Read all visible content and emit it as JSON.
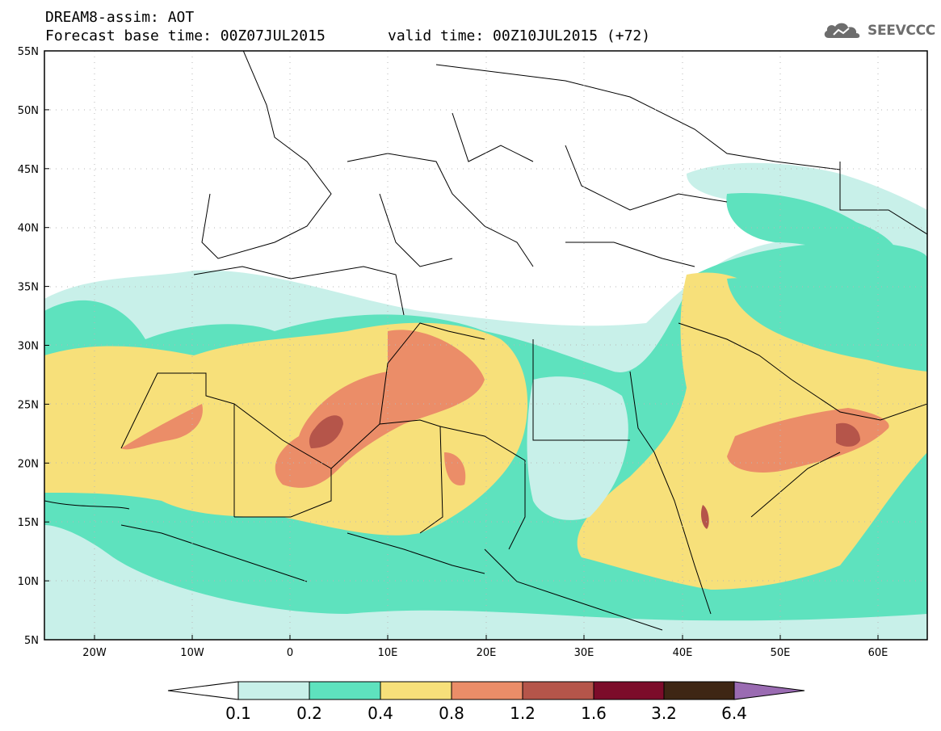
{
  "header": {
    "title": "DREAM8-assim: AOT",
    "base_time": "Forecast base time: 00Z07JUL2015",
    "valid_time": "valid time: 00Z10JUL2015 (+72)"
  },
  "logo": {
    "text": "SEEVCCC",
    "icon": "cloud-icon"
  },
  "map": {
    "lat_labels": [
      "55N",
      "50N",
      "45N",
      "40N",
      "35N",
      "30N",
      "25N",
      "20N",
      "15N",
      "10N",
      "5N"
    ],
    "lon_labels": [
      "20W",
      "10W",
      "0",
      "10E",
      "20E",
      "30E",
      "40E",
      "50E",
      "60E"
    ],
    "grid": true
  },
  "legend": {
    "labels": [
      "0.1",
      "0.2",
      "0.4",
      "0.8",
      "1.2",
      "1.6",
      "3.2",
      "6.4"
    ],
    "colors": [
      "#ffffff",
      "#c8f0e9",
      "#5ee2be",
      "#f7e07a",
      "#eb8d68",
      "#b5554a",
      "#7c0c2a",
      "#3e2614",
      "#9a6bb2"
    ]
  },
  "colors": {
    "low": "#c8f0e9",
    "mid": "#5ee2be",
    "high": "#f7e07a",
    "orange": "#eb8d68",
    "brown": "#b5554a"
  }
}
